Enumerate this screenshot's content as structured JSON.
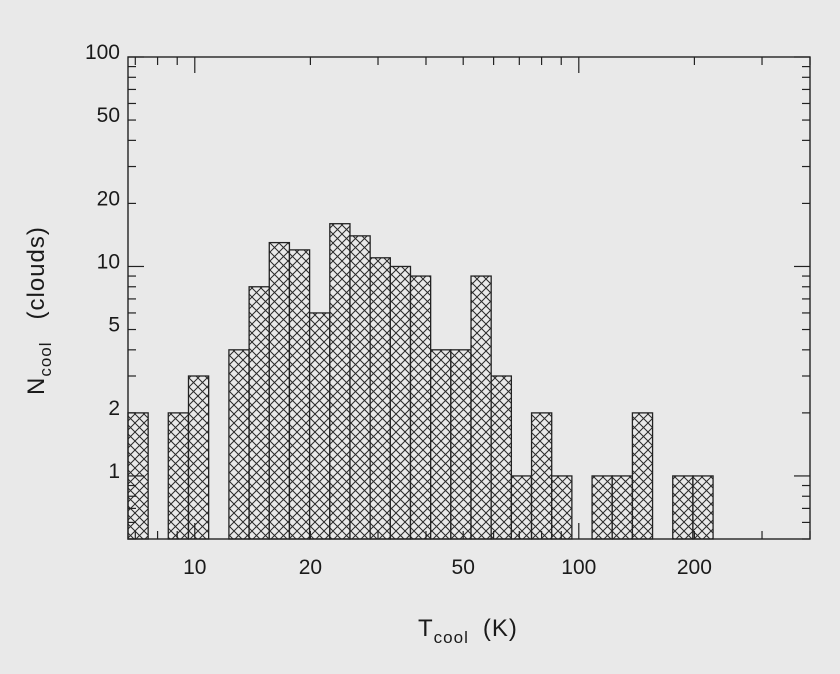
{
  "chart_data": {
    "type": "bar",
    "x_scale": "log",
    "y_scale": "log",
    "xlabel": {
      "main": "T",
      "sub": "cool",
      "unit": "(K)"
    },
    "ylabel": {
      "main": "N",
      "sub": "cool",
      "unit": "(clouds)"
    },
    "xlim": [
      6.7,
      400
    ],
    "ylim": [
      0.5,
      100
    ],
    "x_ticks": [
      10,
      20,
      50,
      100,
      200
    ],
    "x_tick_labels": [
      "10",
      "20",
      "50",
      "100",
      "200"
    ],
    "y_ticks": [
      1,
      2,
      5,
      10,
      20,
      50,
      100
    ],
    "y_tick_labels": [
      "1",
      "2",
      "5",
      "10",
      "20",
      "50",
      "100"
    ],
    "bin_width_log10": 0.0525,
    "bins": [
      {
        "left": 6.7,
        "value": 2
      },
      {
        "left": 7.56,
        "value": 0
      },
      {
        "left": 8.53,
        "value": 2
      },
      {
        "left": 9.63,
        "value": 3
      },
      {
        "left": 10.87,
        "value": 0
      },
      {
        "left": 12.27,
        "value": 4
      },
      {
        "left": 13.85,
        "value": 8
      },
      {
        "left": 15.63,
        "value": 13
      },
      {
        "left": 17.64,
        "value": 12
      },
      {
        "left": 19.91,
        "value": 6
      },
      {
        "left": 22.47,
        "value": 16
      },
      {
        "left": 25.36,
        "value": 14
      },
      {
        "left": 28.62,
        "value": 11
      },
      {
        "left": 32.3,
        "value": 10
      },
      {
        "left": 36.45,
        "value": 9
      },
      {
        "left": 41.14,
        "value": 4
      },
      {
        "left": 46.43,
        "value": 4
      },
      {
        "left": 52.4,
        "value": 9
      },
      {
        "left": 59.14,
        "value": 3
      },
      {
        "left": 66.74,
        "value": 1
      },
      {
        "left": 75.33,
        "value": 2
      },
      {
        "left": 85.01,
        "value": 1
      },
      {
        "left": 95.94,
        "value": 0
      },
      {
        "left": 108.28,
        "value": 1
      },
      {
        "left": 122.2,
        "value": 1
      },
      {
        "left": 137.9,
        "value": 2
      },
      {
        "left": 155.64,
        "value": 0
      },
      {
        "left": 175.65,
        "value": 1
      },
      {
        "left": 198.23,
        "value": 1
      }
    ],
    "grid": false,
    "legend": "none"
  }
}
